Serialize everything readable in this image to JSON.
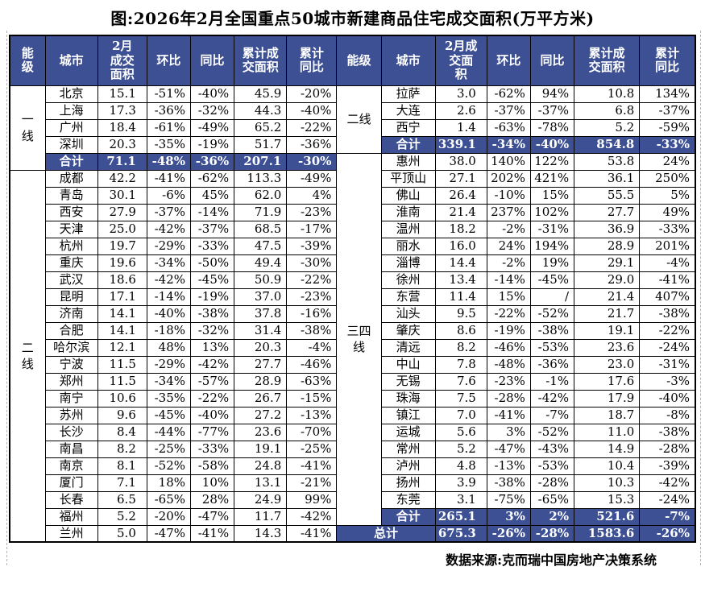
{
  "title": "图:2026年2月全国重点50城市新建商品住宅成交面积(万平方米)",
  "footer": "数据来源:克而瑞中国房地产决策系统",
  "colors": {
    "header_bg": "#3C5093",
    "total_row_bg": "#3C5093",
    "total_row_text": "#FFFFFF",
    "border": "#000000",
    "text": "#000000"
  },
  "headers": {
    "left": [
      "能\n级",
      "城市",
      "2月\n成交\n面积",
      "环比",
      "同比",
      "累计成\n交面积",
      "累计\n同比"
    ],
    "right": [
      "能级",
      "城市",
      "2月成\n交面\n积",
      "环比",
      "同比",
      "累计成\n交面积",
      "累计\n同比"
    ]
  },
  "chart_data": {
    "type": "table",
    "title": "图:2026年2月全国重点50城市新建商品住宅成交面积(万平方米)",
    "source": "数据来源:克而瑞中国房地产决策系统",
    "columns": [
      "能级",
      "城市",
      "2月成交面积",
      "环比",
      "同比",
      "累计成交面积",
      "累计同比"
    ],
    "left": {
      "groups": [
        {
          "tier": "一\n线",
          "rows": [
            {
              "city": "北京",
              "values": [
                "15.1",
                "-51%",
                "-40%",
                "45.9",
                "-20%"
              ]
            },
            {
              "city": "上海",
              "values": [
                "17.3",
                "-36%",
                "-32%",
                "44.3",
                "-40%"
              ]
            },
            {
              "city": "广州",
              "values": [
                "18.4",
                "-61%",
                "-49%",
                "65.2",
                "-22%"
              ]
            },
            {
              "city": "深圳",
              "values": [
                "20.3",
                "-35%",
                "-19%",
                "51.7",
                "-36%"
              ]
            },
            {
              "city": "合计",
              "values": [
                "71.1",
                "-48%",
                "-36%",
                "207.1",
                "-30%"
              ],
              "total": true
            }
          ]
        },
        {
          "tier": "二\n线",
          "rows": [
            {
              "city": "成都",
              "values": [
                "42.2",
                "-41%",
                "-62%",
                "113.3",
                "-49%"
              ]
            },
            {
              "city": "青岛",
              "values": [
                "30.1",
                "-6%",
                "45%",
                "62.0",
                "4%"
              ]
            },
            {
              "city": "西安",
              "values": [
                "27.9",
                "-37%",
                "-14%",
                "71.9",
                "-23%"
              ]
            },
            {
              "city": "天津",
              "values": [
                "25.0",
                "-42%",
                "-37%",
                "68.5",
                "-17%"
              ]
            },
            {
              "city": "杭州",
              "values": [
                "19.7",
                "-29%",
                "-33%",
                "47.5",
                "-39%"
              ]
            },
            {
              "city": "重庆",
              "values": [
                "19.6",
                "-34%",
                "-50%",
                "49.4",
                "-30%"
              ]
            },
            {
              "city": "武汉",
              "values": [
                "18.6",
                "-42%",
                "-45%",
                "50.9",
                "-22%"
              ]
            },
            {
              "city": "昆明",
              "values": [
                "17.1",
                "-14%",
                "-19%",
                "37.0",
                "-23%"
              ]
            },
            {
              "city": "济南",
              "values": [
                "14.1",
                "-40%",
                "-38%",
                "37.8",
                "-16%"
              ]
            },
            {
              "city": "合肥",
              "values": [
                "14.1",
                "-18%",
                "-32%",
                "31.4",
                "-38%"
              ]
            },
            {
              "city": "哈尔滨",
              "values": [
                "12.1",
                "48%",
                "13%",
                "20.3",
                "-4%"
              ]
            },
            {
              "city": "宁波",
              "values": [
                "11.5",
                "-29%",
                "-42%",
                "27.7",
                "-46%"
              ]
            },
            {
              "city": "郑州",
              "values": [
                "11.5",
                "-34%",
                "-57%",
                "28.9",
                "-63%"
              ]
            },
            {
              "city": "南宁",
              "values": [
                "10.6",
                "-35%",
                "-22%",
                "26.7",
                "-15%"
              ]
            },
            {
              "city": "苏州",
              "values": [
                "9.6",
                "-45%",
                "-40%",
                "27.2",
                "-13%"
              ]
            },
            {
              "city": "长沙",
              "values": [
                "8.4",
                "-44%",
                "-77%",
                "23.6",
                "-70%"
              ]
            },
            {
              "city": "南昌",
              "values": [
                "8.2",
                "-25%",
                "-33%",
                "19.1",
                "-25%"
              ]
            },
            {
              "city": "南京",
              "values": [
                "8.1",
                "-52%",
                "-58%",
                "24.8",
                "-41%"
              ]
            },
            {
              "city": "厦门",
              "values": [
                "7.1",
                "18%",
                "10%",
                "13.1",
                "-21%"
              ]
            },
            {
              "city": "长春",
              "values": [
                "6.5",
                "-65%",
                "28%",
                "24.9",
                "99%"
              ]
            },
            {
              "city": "福州",
              "values": [
                "5.2",
                "-20%",
                "-47%",
                "11.7",
                "-42%"
              ]
            },
            {
              "city": "兰州",
              "values": [
                "5.0",
                "-47%",
                "-41%",
                "14.3",
                "-41%"
              ]
            }
          ]
        }
      ]
    },
    "right": {
      "groups": [
        {
          "tier": "二线",
          "rows": [
            {
              "city": "拉萨",
              "values": [
                "3.0",
                "-62%",
                "94%",
                "10.8",
                "134%"
              ]
            },
            {
              "city": "大连",
              "values": [
                "2.6",
                "-37%",
                "-37%",
                "6.8",
                "-37%"
              ]
            },
            {
              "city": "西宁",
              "values": [
                "1.4",
                "-63%",
                "-78%",
                "5.2",
                "-59%"
              ]
            },
            {
              "city": "合计",
              "values": [
                "339.1",
                "-34%",
                "-40%",
                "854.8",
                "-33%"
              ],
              "total": true
            }
          ]
        },
        {
          "tier": "三四\n线",
          "rows": [
            {
              "city": "惠州",
              "values": [
                "38.0",
                "140%",
                "122%",
                "53.8",
                "24%"
              ]
            },
            {
              "city": "平顶山",
              "values": [
                "27.1",
                "202%",
                "421%",
                "36.1",
                "250%"
              ]
            },
            {
              "city": "佛山",
              "values": [
                "26.4",
                "-10%",
                "15%",
                "55.5",
                "5%"
              ]
            },
            {
              "city": "淮南",
              "values": [
                "21.4",
                "237%",
                "102%",
                "27.7",
                "49%"
              ]
            },
            {
              "city": "温州",
              "values": [
                "18.2",
                "-2%",
                "-31%",
                "36.9",
                "-33%"
              ]
            },
            {
              "city": "丽水",
              "values": [
                "16.0",
                "24%",
                "194%",
                "28.9",
                "201%"
              ]
            },
            {
              "city": "淄博",
              "values": [
                "14.4",
                "-2%",
                "19%",
                "29.1",
                "-4%"
              ]
            },
            {
              "city": "徐州",
              "values": [
                "13.4",
                "-14%",
                "-45%",
                "29.0",
                "-41%"
              ]
            },
            {
              "city": "东营",
              "values": [
                "11.4",
                "15%",
                "/",
                "21.4",
                "407%"
              ]
            },
            {
              "city": "汕头",
              "values": [
                "9.5",
                "-22%",
                "-52%",
                "21.7",
                "-38%"
              ]
            },
            {
              "city": "肇庆",
              "values": [
                "8.6",
                "-19%",
                "-38%",
                "19.1",
                "-22%"
              ]
            },
            {
              "city": "清远",
              "values": [
                "8.2",
                "-46%",
                "-53%",
                "23.6",
                "-24%"
              ]
            },
            {
              "city": "中山",
              "values": [
                "7.8",
                "-48%",
                "-36%",
                "23.0",
                "-31%"
              ]
            },
            {
              "city": "无锡",
              "values": [
                "7.6",
                "-23%",
                "-1%",
                "17.6",
                "-3%"
              ]
            },
            {
              "city": "珠海",
              "values": [
                "7.5",
                "-28%",
                "-42%",
                "17.9",
                "-40%"
              ]
            },
            {
              "city": "镇江",
              "values": [
                "7.0",
                "-41%",
                "-7%",
                "18.7",
                "-8%"
              ]
            },
            {
              "city": "运城",
              "values": [
                "5.6",
                "3%",
                "-52%",
                "11.0",
                "-38%"
              ]
            },
            {
              "city": "常州",
              "values": [
                "5.2",
                "-47%",
                "-43%",
                "14.9",
                "-28%"
              ]
            },
            {
              "city": "泸州",
              "values": [
                "4.8",
                "-13%",
                "-53%",
                "10.4",
                "-39%"
              ]
            },
            {
              "city": "扬州",
              "values": [
                "3.9",
                "-38%",
                "-28%",
                "10.3",
                "-42%"
              ]
            },
            {
              "city": "东莞",
              "values": [
                "3.1",
                "-75%",
                "-65%",
                "15.3",
                "-24%"
              ]
            },
            {
              "city": "合计",
              "values": [
                "265.1",
                "3%",
                "2%",
                "521.6",
                "-7%"
              ],
              "total": true
            }
          ]
        }
      ],
      "grand_total": {
        "city": "总计",
        "values": [
          "675.3",
          "-26%",
          "-28%",
          "1583.6",
          "-26%"
        ]
      }
    }
  }
}
